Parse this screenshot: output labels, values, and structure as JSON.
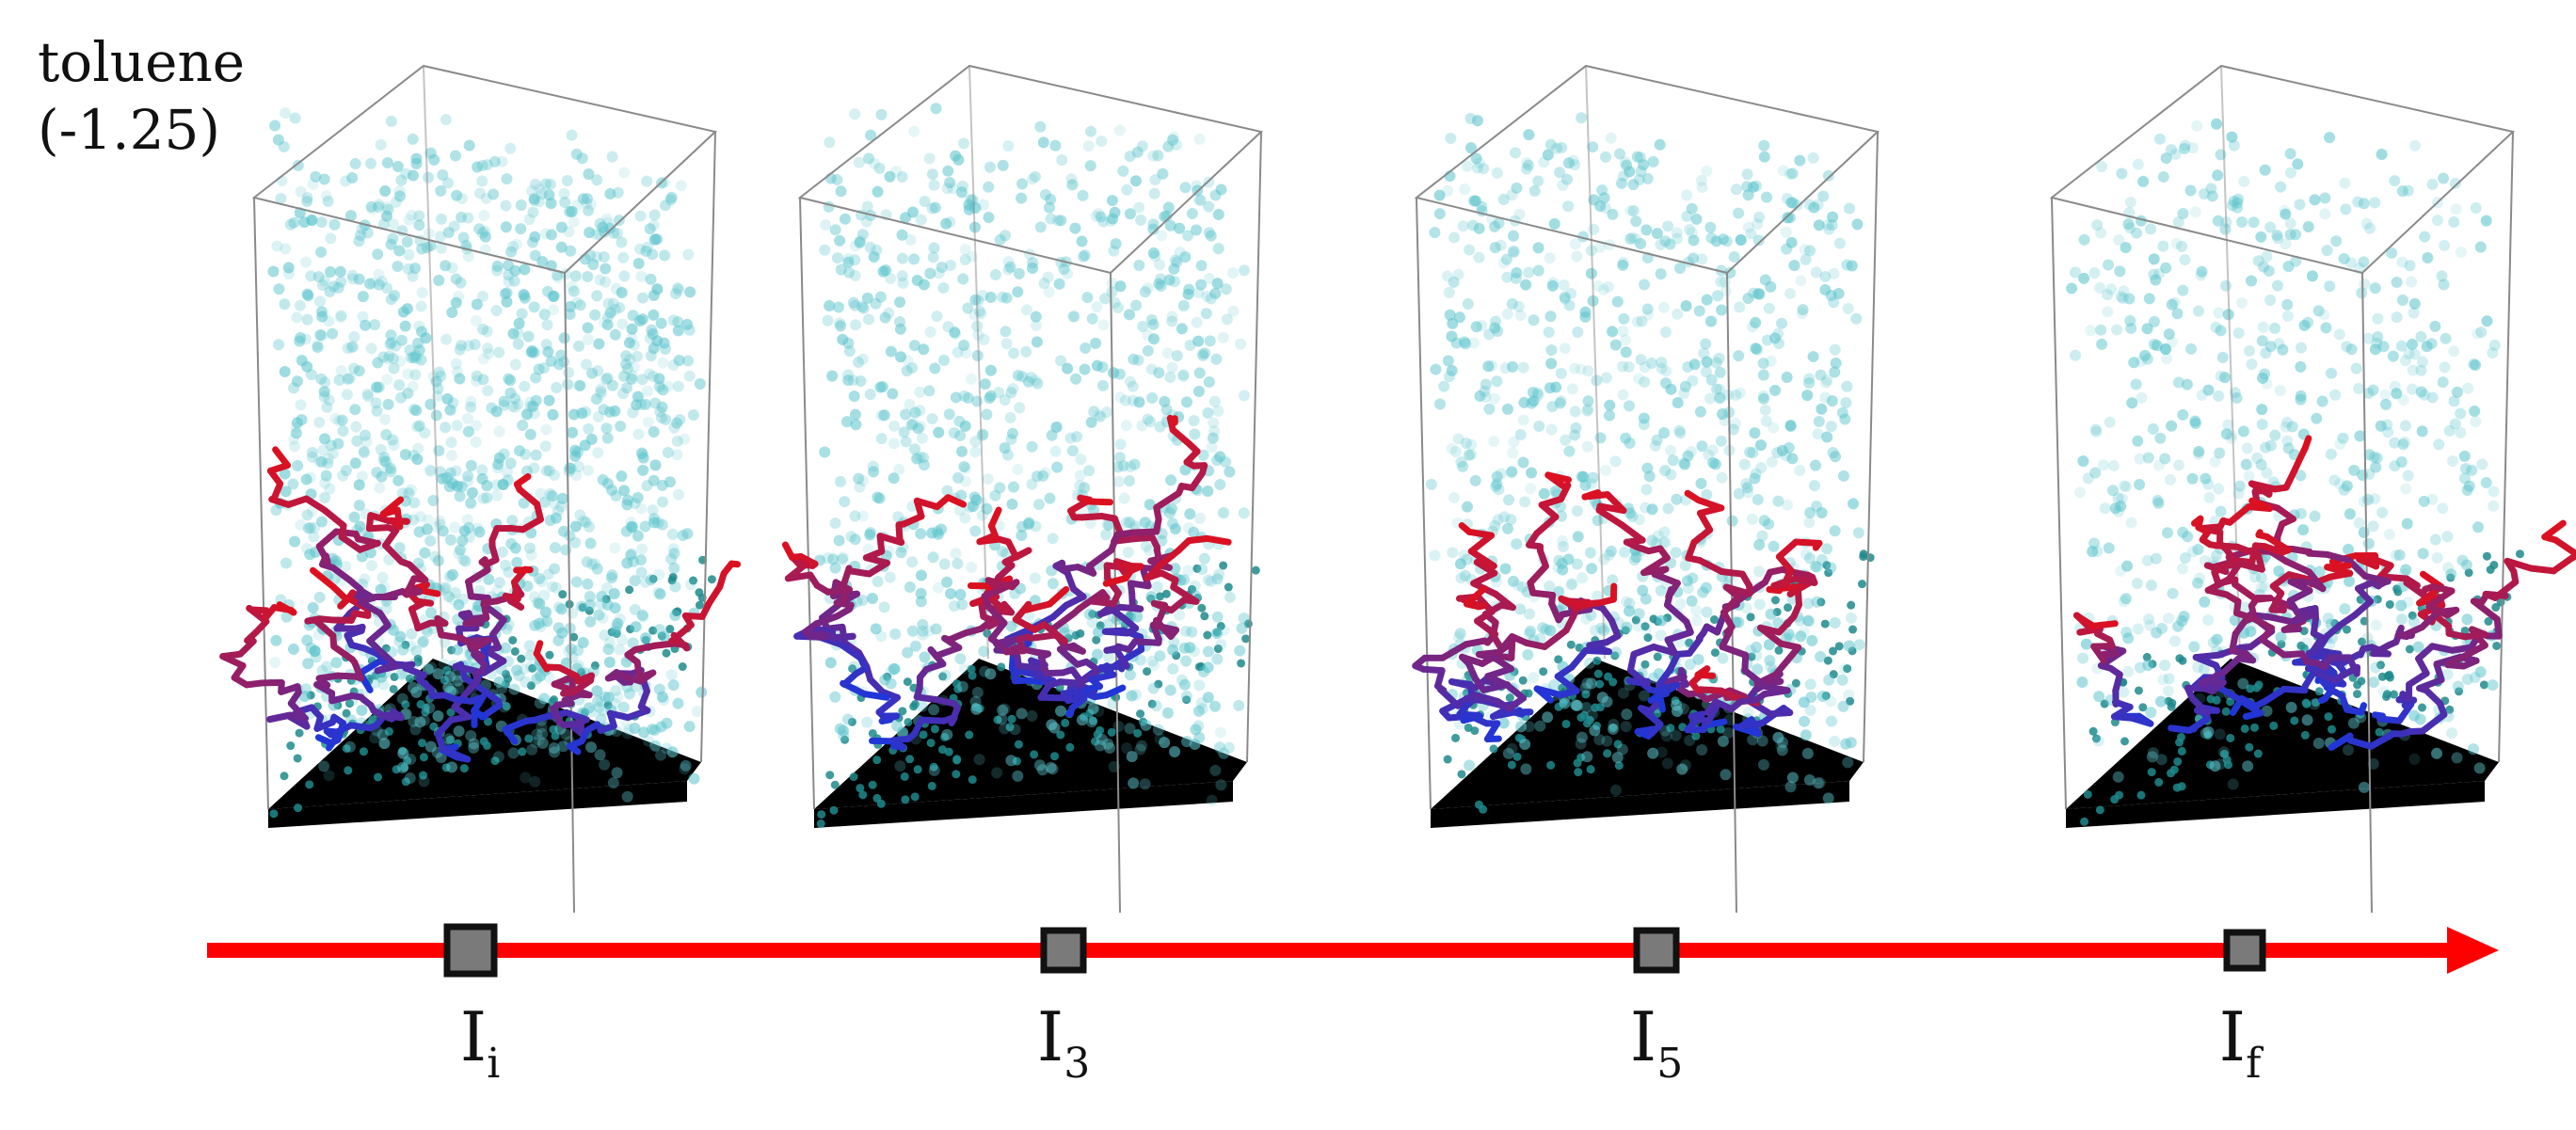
{
  "solvent": {
    "name": "toluene",
    "value": "(-1.25)"
  },
  "colors": {
    "solvent_particle": "#5cc4cc",
    "substrate": "#000000",
    "substrate_bead": "#1e8a8c",
    "chain_start": "#e0101c",
    "chain_end": "#2036d8",
    "box_edge": "#8a8a8a",
    "timeline": "#ff0000",
    "marker_fill": "#7a7a7a",
    "marker_border": "#111111"
  },
  "snapshots": [
    {
      "id": "Ii",
      "label_base": "I",
      "label_sub": "i",
      "solvent_density": "high"
    },
    {
      "id": "I3",
      "label_base": "I",
      "label_sub": "3",
      "solvent_density": "medium"
    },
    {
      "id": "I5",
      "label_base": "I",
      "label_sub": "5",
      "solvent_density": "medium"
    },
    {
      "id": "If",
      "label_base": "I",
      "label_sub": "f",
      "solvent_density": "low"
    }
  ],
  "timeline": {
    "direction": "right-arrow",
    "marker_icon": "square-marker-icon"
  }
}
